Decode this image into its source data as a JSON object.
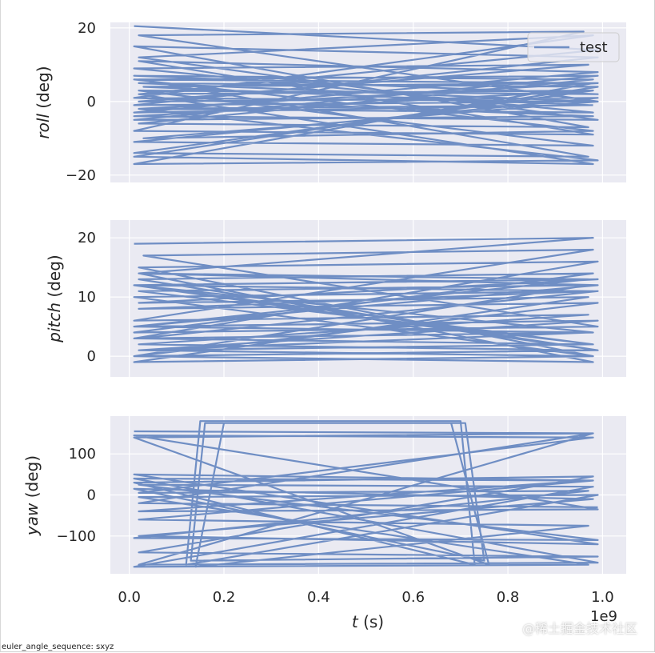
{
  "colors": {
    "series": "#6f8ec4",
    "panel_bg": "#eaeaf2",
    "grid": "#ffffff",
    "text": "#262626"
  },
  "footer_text": "euler_angle_sequence: sxyz",
  "watermark": "@稀土掘金技术社区",
  "chart_data": {
    "type": "line",
    "shared_x": true,
    "xlabel_var": "t",
    "xlabel_unit": "(s)",
    "x_offset_text": "1e9",
    "x_ticks": [
      0.0,
      0.2,
      0.4,
      0.6,
      0.8,
      1.0
    ],
    "x_tick_labels": [
      "0.0",
      "0.2",
      "0.4",
      "0.6",
      "0.8",
      "1.0"
    ],
    "xlim": [
      -0.04,
      1.05
    ],
    "legend": {
      "entries": [
        "test"
      ],
      "placement": "top-right",
      "panel": 0
    },
    "grid": true,
    "panels": [
      {
        "ylabel_var": "roll",
        "ylabel_unit": "(deg)",
        "ylim": [
          -22,
          21.5
        ],
        "y_ticks": [
          20,
          0,
          -20
        ],
        "y_tick_labels": [
          "20",
          "0",
          "−20"
        ],
        "series": [
          {
            "name": "test",
            "x": [
              0.01,
              0.99,
              0.02,
              0.98,
              0.01,
              0.97,
              0.02,
              0.99,
              0.01,
              0.98,
              0.01,
              0.99,
              0.02,
              0.96,
              0.01,
              0.98,
              0.02,
              0.99,
              0.01,
              0.97,
              0.03,
              0.98,
              0.01,
              0.99,
              0.02,
              0.98,
              0.01,
              0.97,
              0.02,
              0.99,
              0.01,
              0.98,
              0.02,
              0.99,
              0.01,
              0.98,
              0.02,
              0.97,
              0.01,
              0.99,
              0.01,
              0.98,
              0.02,
              0.99,
              0.01,
              0.98,
              0.02,
              0.97,
              0.01,
              0.99,
              0.02,
              0.98,
              0.01,
              0.99,
              0.03,
              0.98,
              0.01,
              0.99,
              0.02,
              0.98
            ],
            "y": [
              20.5,
              14,
              2,
              3,
              -14,
              -15,
              6,
              7,
              -5,
              -4,
              1,
              0,
              18,
              19,
              -8,
              -9,
              11,
              8,
              -3,
              -1,
              4,
              5,
              -17,
              -16,
              -2,
              -3,
              9,
              10,
              0,
              1,
              -11,
              -12,
              3,
              2,
              7,
              6,
              -6,
              -7,
              15,
              12,
              -1,
              0,
              5,
              4,
              -15,
              -17,
              2,
              3,
              -4,
              -5,
              12,
              18,
              1,
              0,
              -10,
              -8,
              6,
              5,
              -2,
              -1
            ]
          }
        ]
      },
      {
        "ylabel_var": "pitch",
        "ylabel_unit": "(deg)",
        "ylim": [
          -3.5,
          23
        ],
        "y_ticks": [
          20,
          10,
          0
        ],
        "y_tick_labels": [
          "20",
          "10",
          "0"
        ],
        "series": [
          {
            "name": "test",
            "x": [
              0.01,
              0.98,
              0.02,
              0.99,
              0.01,
              0.97,
              0.02,
              0.98,
              0.01,
              0.99,
              0.02,
              0.97,
              0.01,
              0.98,
              0.02,
              0.99,
              0.01,
              0.98,
              0.02,
              0.97,
              0.01,
              0.99,
              0.02,
              0.98,
              0.01,
              0.99,
              0.03,
              0.98,
              0.01,
              0.97,
              0.02,
              0.99,
              0.01,
              0.98,
              0.02,
              0.99,
              0.01,
              0.98,
              0.02,
              0.97,
              0.01,
              0.99,
              0.02,
              0.98,
              0.01,
              0.99,
              0.02,
              0.98,
              0.01,
              0.97
            ],
            "y": [
              19,
              20,
              14,
              12,
              5,
              4,
              1,
              2,
              12,
              13,
              9,
              10,
              -1,
              0,
              15,
              16,
              3,
              2,
              11,
              12,
              0,
              1,
              13,
              14,
              4,
              5,
              17,
              18,
              6,
              7,
              2,
              1,
              12,
              11,
              8,
              9,
              0,
              -1,
              14,
              13,
              5,
              6,
              1,
              0,
              10,
              11,
              3,
              4,
              12,
              13
            ]
          }
        ]
      },
      {
        "ylabel_var": "yaw",
        "ylabel_unit": "(deg)",
        "ylim": [
          -192,
          192
        ],
        "y_ticks": [
          100,
          0,
          -100
        ],
        "y_tick_labels": [
          "100",
          "0",
          "−100"
        ],
        "series": [
          {
            "name": "test",
            "x": [
              0.01,
              0.98,
              0.02,
              0.99,
              0.01,
              0.97,
              0.02,
              0.99,
              0.01,
              0.98,
              0.02,
              0.97,
              0.01,
              0.99,
              0.02,
              0.98,
              0.01,
              0.97,
              0.02,
              0.99,
              0.12,
              0.15,
              0.7,
              0.73,
              0.01,
              0.98,
              0.02,
              0.99,
              0.13,
              0.16,
              0.71,
              0.75,
              0.01,
              0.98,
              0.02,
              0.99,
              0.01,
              0.98,
              0.02,
              0.97,
              0.14,
              0.2,
              0.68,
              0.76,
              0.01,
              0.98,
              0.02,
              0.99
            ],
            "y": [
              155,
              150,
              -170,
              -165,
              40,
              35,
              -40,
              -35,
              145,
              140,
              5,
              10,
              -105,
              -110,
              25,
              20,
              -175,
              -170,
              -5,
              0,
              -170,
              180,
              180,
              -170,
              30,
              45,
              -140,
              -150,
              -160,
              175,
              175,
              -160,
              15,
              -10,
              -100,
              -120,
              50,
              35,
              -60,
              -75,
              -175,
              175,
              175,
              -170,
              140,
              150,
              -20,
              -30
            ]
          }
        ]
      }
    ]
  }
}
